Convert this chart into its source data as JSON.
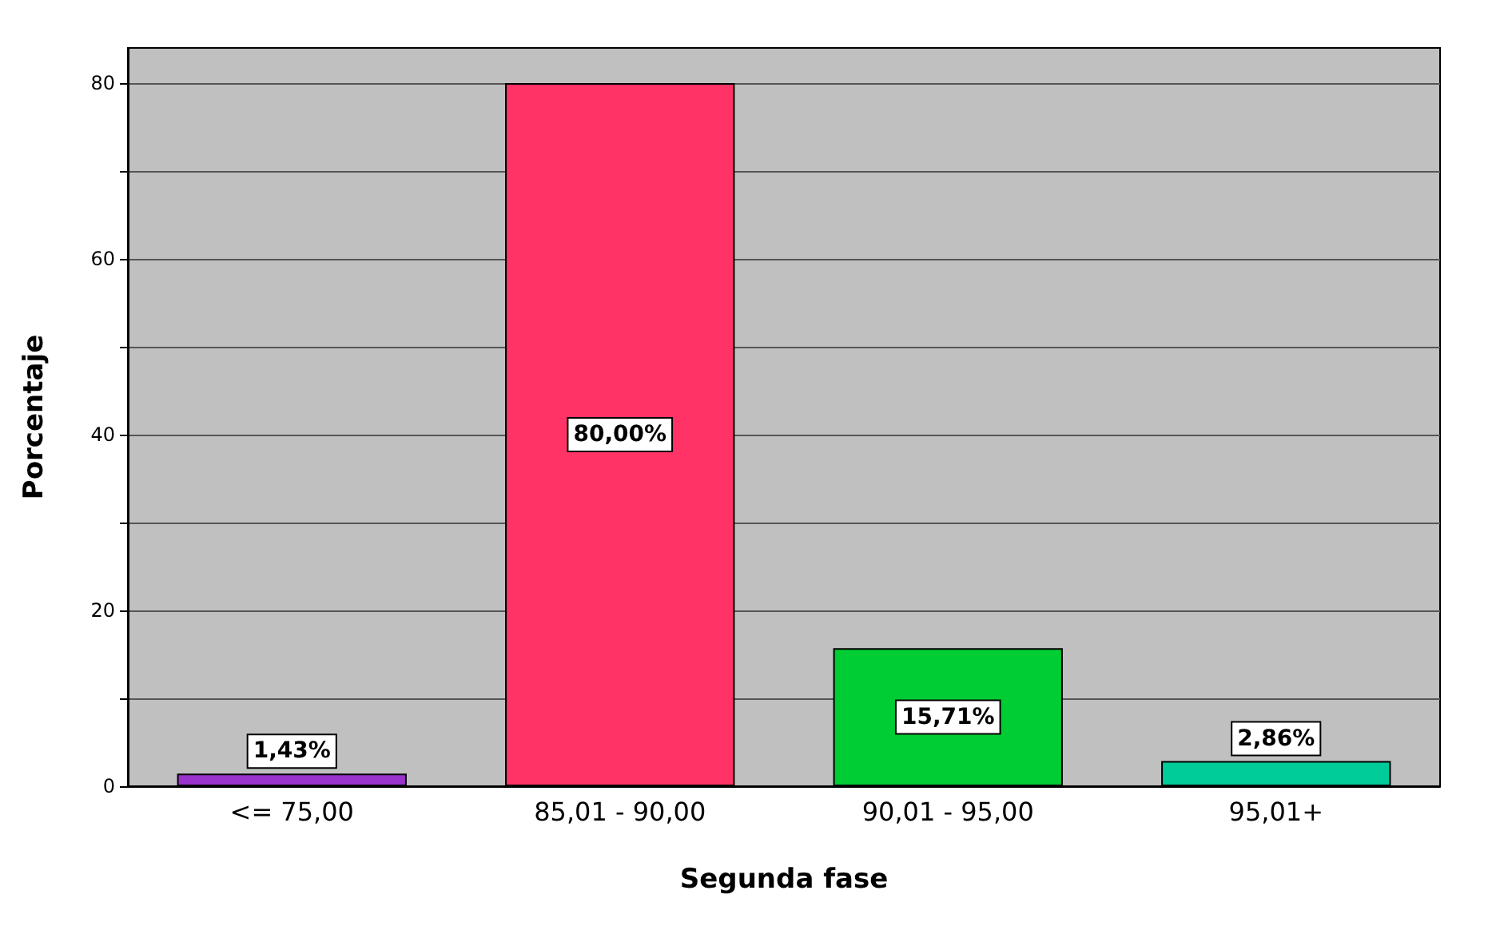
{
  "chart_data": {
    "type": "bar",
    "xlabel": "Segunda fase",
    "ylabel": "Porcentaje",
    "categories": [
      "<= 75,00",
      "85,01 - 90,00",
      "90,01 - 95,00",
      "95,01+"
    ],
    "values": [
      1.43,
      80,
      15.71,
      2.86
    ],
    "colors": [
      "#9933cc",
      "#ff3366",
      "#00cc33",
      "#00cc99"
    ],
    "value_labels": [
      "1,43%",
      "80,00%",
      "15,71%",
      "2,86%"
    ],
    "ylim": [
      0,
      84
    ],
    "yticks": [
      0,
      {
        "value": 10,
        "label": null
      },
      20,
      {
        "value": 30,
        "label": null
      },
      40,
      {
        "value": 50,
        "label": null
      },
      60,
      {
        "value": 70,
        "label": null
      },
      80
    ],
    "grid": true
  }
}
